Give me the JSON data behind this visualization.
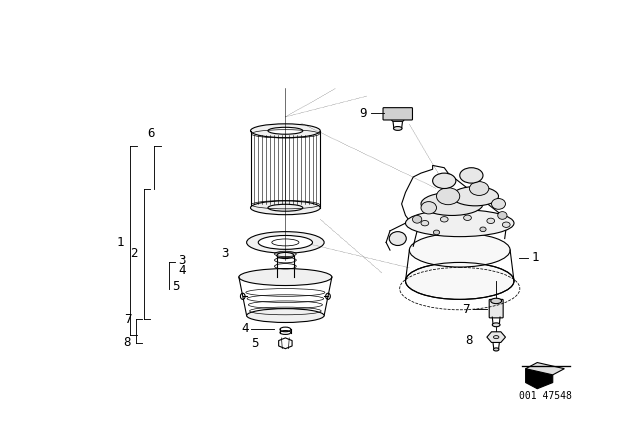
{
  "background_color": "#ffffff",
  "line_color": "#000000",
  "text_color": "#000000",
  "watermark": "001 47548",
  "fig_width": 6.4,
  "fig_height": 4.48,
  "dpi": 100
}
